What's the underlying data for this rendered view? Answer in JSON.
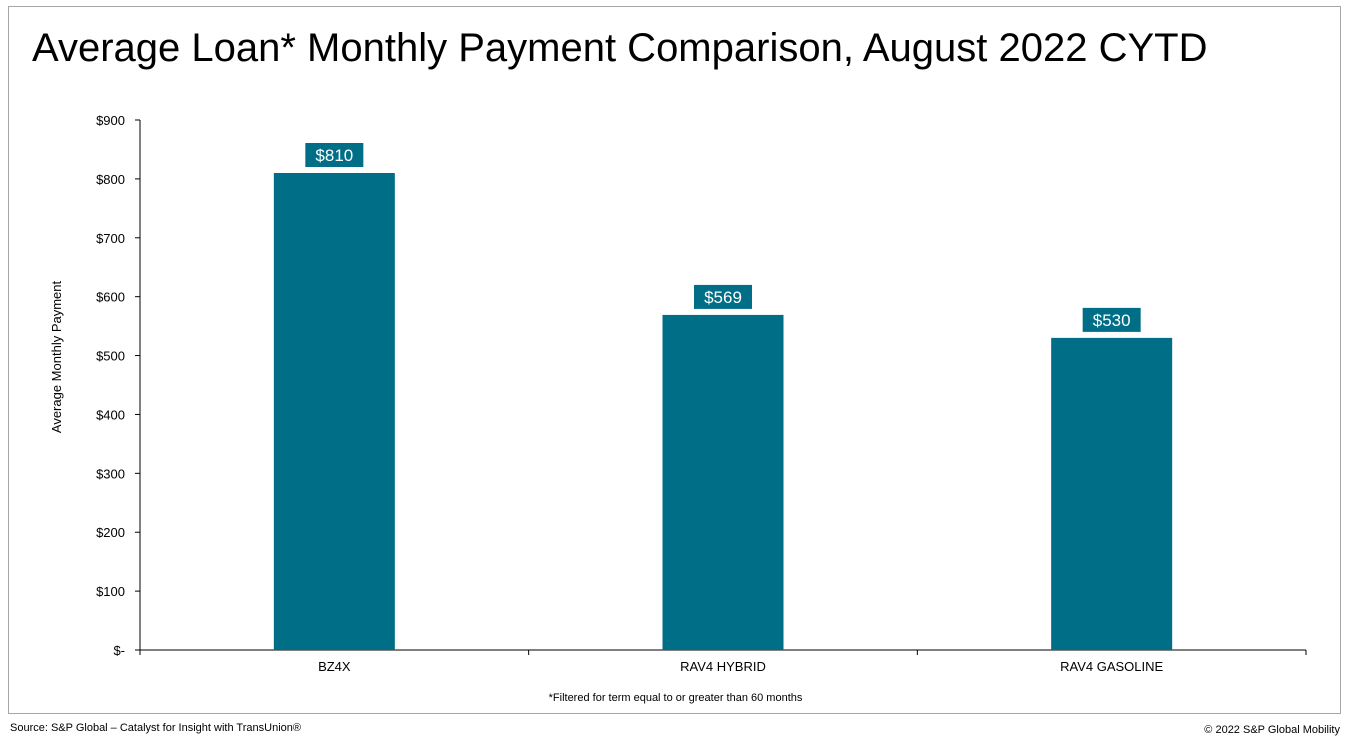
{
  "title": "Average Loan* Monthly Payment Comparison, August 2022 CYTD",
  "footnote": "*Filtered for term equal to or greater than 60 months",
  "source": "Source: S&P Global – Catalyst for Insight with TransUnion®",
  "copyright": "© 2022 S&P Global Mobility",
  "colors": {
    "bar": "#006e87",
    "label_bg": "#006e87",
    "axis": "#000000",
    "frame": "#a6a6a6"
  },
  "chart_data": {
    "type": "bar",
    "categories": [
      "BZ4X",
      "RAV4 HYBRID",
      "RAV4 GASOLINE"
    ],
    "values": [
      810,
      569,
      530
    ],
    "data_labels": [
      "$810",
      "$569",
      "$530"
    ],
    "ylabel": "Average Monthly Payment",
    "xlabel": "",
    "ylim": [
      0,
      900
    ],
    "yticks": [
      0,
      100,
      200,
      300,
      400,
      500,
      600,
      700,
      800,
      900
    ],
    "ytick_labels": [
      "$-",
      "$100",
      "$200",
      "$300",
      "$400",
      "$500",
      "$600",
      "$700",
      "$800",
      "$900"
    ],
    "grid": false,
    "legend": "none"
  }
}
